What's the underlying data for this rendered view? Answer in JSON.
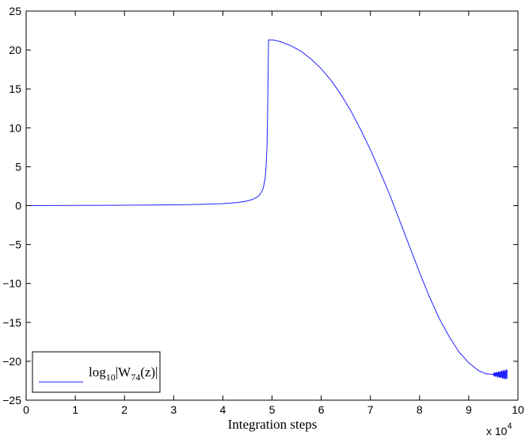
{
  "chart_data": {
    "type": "line",
    "xlabel": "Integration steps",
    "x_multiplier_label": "x 10",
    "x_multiplier_exponent": "4",
    "xlim": [
      0,
      10
    ],
    "ylim": [
      -25,
      25
    ],
    "xticks": [
      "0",
      "1",
      "2",
      "3",
      "4",
      "5",
      "6",
      "7",
      "8",
      "9",
      "10"
    ],
    "yticks": [
      "25",
      "20",
      "15",
      "10",
      "5",
      "0",
      "−5",
      "−10",
      "−15",
      "−20",
      "−25"
    ],
    "grid": false,
    "legend_position": "bottom-left",
    "legend": {
      "prefix": "log",
      "prefix_sub": "10",
      "bar_open": "|W",
      "w_sub": "74",
      "tail": "(z)|"
    },
    "colors": {
      "series": "#2020ff",
      "axes": "#000000"
    },
    "series": [
      {
        "x": [
          0,
          1,
          2,
          3,
          3.5,
          4,
          4.3,
          4.5,
          4.6,
          4.7,
          4.75,
          4.8,
          4.83,
          4.86,
          4.88,
          4.9,
          4.91,
          4.92,
          4.925,
          4.93,
          4.95,
          5.0,
          5.1,
          5.2,
          5.4,
          5.6,
          5.8,
          6.0,
          6.2,
          6.4,
          6.6,
          6.8,
          7.0,
          7.2,
          7.4,
          7.6,
          7.8,
          8.0,
          8.2,
          8.4,
          8.6,
          8.8,
          9.0,
          9.2,
          9.35,
          9.5
        ],
        "y": [
          0.0,
          0.02,
          0.05,
          0.1,
          0.15,
          0.25,
          0.4,
          0.6,
          0.8,
          1.1,
          1.4,
          1.9,
          2.5,
          3.5,
          5.0,
          8.0,
          12.0,
          16.5,
          19.5,
          21.3,
          21.3,
          21.3,
          21.2,
          21.0,
          20.5,
          19.8,
          18.8,
          17.6,
          16.1,
          14.3,
          12.2,
          9.8,
          7.2,
          4.3,
          1.3,
          -2.0,
          -5.3,
          -8.6,
          -11.7,
          -14.5,
          -16.8,
          -18.8,
          -20.2,
          -21.2,
          -21.6,
          -21.7
        ]
      }
    ],
    "oscillation": {
      "x_start": 9.5,
      "x_end": 9.78,
      "center": -21.7,
      "amplitude": 0.7
    }
  }
}
